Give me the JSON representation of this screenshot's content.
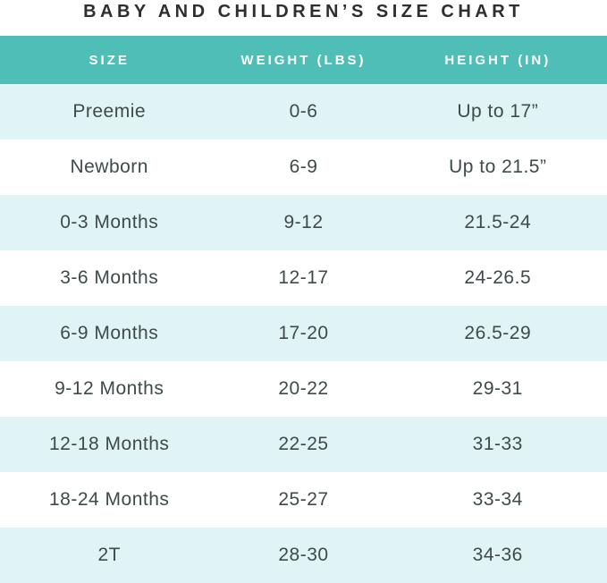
{
  "title": "BABY AND CHILDREN’S SIZE CHART",
  "chart_data": {
    "type": "table",
    "title": "BABY AND CHILDREN’S SIZE CHART",
    "columns": [
      "SIZE",
      "WEIGHT (LBS)",
      "HEIGHT (IN)"
    ],
    "rows": [
      [
        "Preemie",
        "0-6",
        "Up to 17”"
      ],
      [
        "Newborn",
        "6-9",
        "Up to 21.5”"
      ],
      [
        "0-3 Months",
        "9-12",
        "21.5-24"
      ],
      [
        "3-6 Months",
        "12-17",
        "24-26.5"
      ],
      [
        "6-9 Months",
        "17-20",
        "26.5-29"
      ],
      [
        "9-12 Months",
        "20-22",
        "29-31"
      ],
      [
        "12-18 Months",
        "22-25",
        "31-33"
      ],
      [
        "18-24 Months",
        "25-27",
        "33-34"
      ],
      [
        "2T",
        "28-30",
        "34-36"
      ]
    ],
    "layout": {
      "row_striping": "alternating mint/white starting mint",
      "alignment": "center",
      "grid": "off"
    }
  },
  "colors": {
    "header_bg": "#4FBEB6",
    "header_text": "#FFFFFF",
    "row_alt_bg": "#E0F4F6",
    "row_bg": "#FFFFFF",
    "cell_text": "#3F4A4B",
    "title_text": "#2E2E2E"
  }
}
